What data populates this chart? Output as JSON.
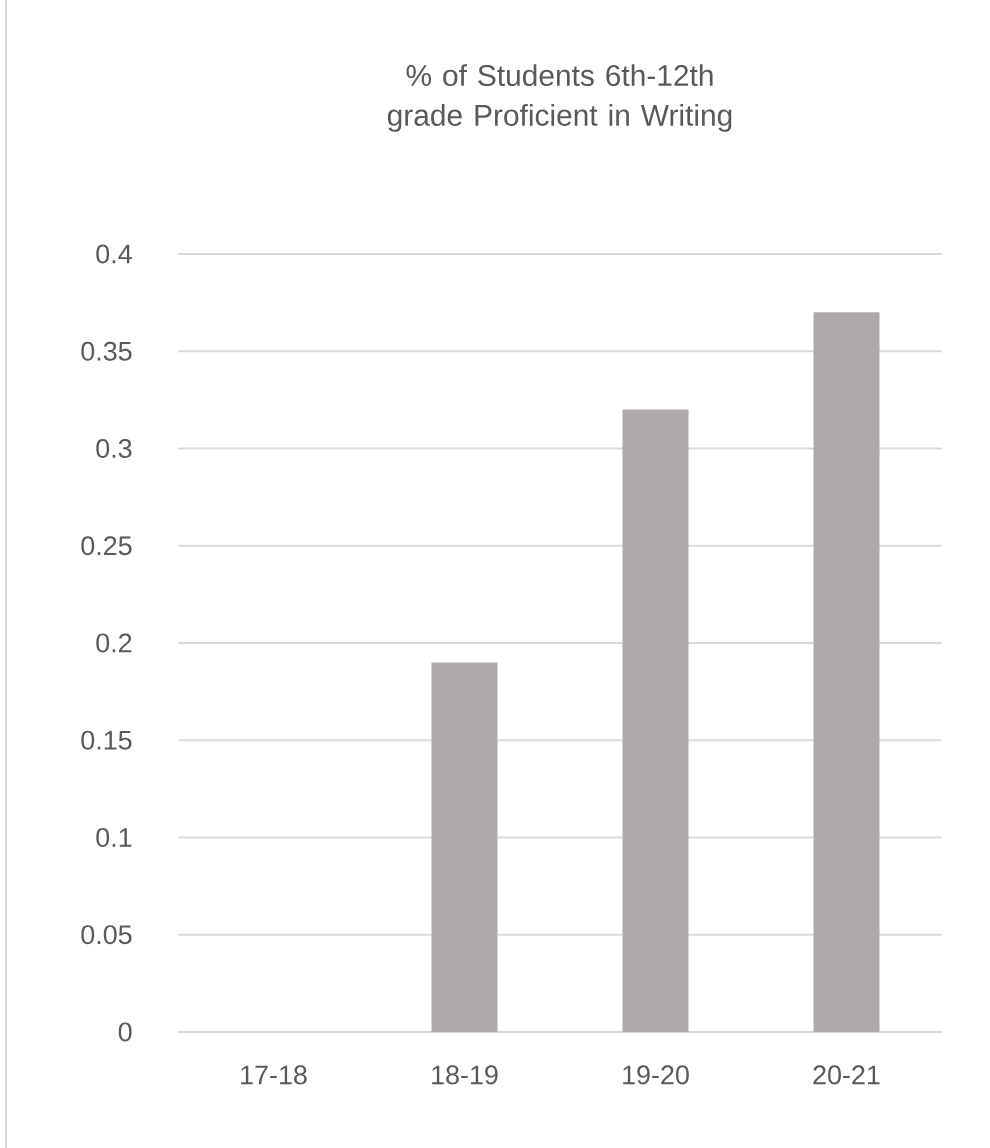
{
  "chart_data": {
    "type": "bar",
    "title": "% of Students 6th-12th grade Proficient in Writing",
    "categories": [
      "17-18",
      "18-19",
      "19-20",
      "20-21"
    ],
    "values": [
      null,
      0.19,
      0.32,
      0.37
    ],
    "color": "#aeaaaa",
    "ylim": [
      0,
      0.4
    ],
    "yticks": [
      0,
      0.05,
      0.1,
      0.15,
      0.2,
      0.25,
      0.3,
      0.35,
      0.4
    ],
    "grid": "y"
  }
}
